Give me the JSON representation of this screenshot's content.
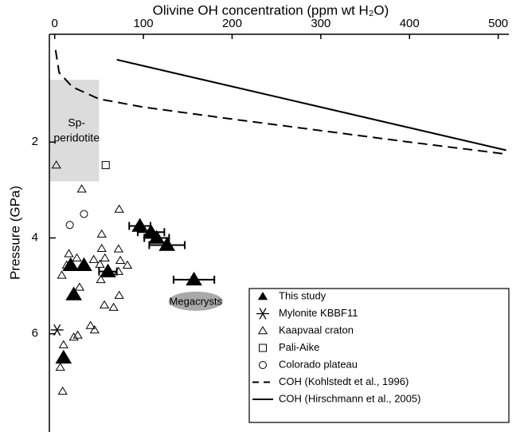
{
  "chart_data": {
    "type": "scatter",
    "x_label": "Olivine OH concentration (ppm wt H₂O)",
    "y_label": "Pressure (GPa)",
    "xlim": [
      -6,
      512
    ],
    "xticks": [
      0,
      100,
      200,
      300,
      400,
      500
    ],
    "ylim": [
      8.05,
      -0.25
    ],
    "yticks": [
      2,
      4,
      6
    ],
    "legend": "lower right",
    "region": {
      "label": [
        "Sp-",
        "peridotite"
      ],
      "x": [
        -6,
        50
      ],
      "y": [
        0.7,
        2.82
      ],
      "color": "#dcdcdc"
    },
    "annotation": {
      "text": "Megacrysts",
      "x": 159,
      "y": 5.32,
      "color": "#a9a9a9"
    },
    "series": [
      {
        "name": "This study",
        "marker": "triangle-filled",
        "color": "#000000",
        "x": [
          96,
          108.6,
          115,
          126.6,
          157,
          18,
          33,
          60,
          21.5,
          10
        ],
        "values": [
          3.75,
          3.88,
          4.0,
          4.15,
          4.87,
          4.57,
          4.57,
          4.7,
          5.18,
          6.5
        ],
        "xerr": [
          12,
          15,
          14,
          20,
          23,
          null,
          null,
          10,
          null,
          null
        ]
      },
      {
        "name": "Mylonite KBBF11",
        "marker": "asterisk",
        "color": "#000000",
        "x": [
          2.7
        ],
        "values": [
          5.92
        ]
      },
      {
        "name": "Kaapvaal craton",
        "marker": "triangle-open",
        "color": "#000000",
        "x": [
          1.8,
          30.5,
          72.7,
          53,
          16,
          25,
          53,
          44,
          72,
          8,
          13.5,
          51,
          56.6,
          74,
          82,
          52,
          72,
          28,
          56,
          66.4,
          72.7,
          40.4,
          45,
          21.5,
          26,
          10,
          6.3,
          9
        ],
        "values": [
          2.48,
          2.98,
          3.4,
          3.92,
          4.33,
          4.42,
          4.22,
          4.45,
          4.23,
          4.78,
          4.57,
          4.55,
          4.42,
          4.47,
          4.57,
          4.87,
          4.7,
          5.03,
          5.4,
          5.45,
          5.2,
          5.83,
          5.92,
          6.07,
          6.03,
          6.23,
          6.7,
          7.2
        ]
      },
      {
        "name": "Pali-Aike",
        "marker": "square-open",
        "color": "#000000",
        "x": [
          57.5
        ],
        "values": [
          2.48
        ]
      },
      {
        "name": "Colorado plateau",
        "marker": "circle-open",
        "color": "#000000",
        "x": [
          17,
          33
        ],
        "values": [
          3.73,
          3.5
        ]
      },
      {
        "name": "COH (Kohlstedt et al., 1996)",
        "marker": "dashed",
        "color": "#000000",
        "x": [
          1,
          5,
          20,
          50,
          100,
          200,
          300,
          400,
          509
        ],
        "values": [
          0.08,
          0.55,
          0.85,
          1.1,
          1.27,
          1.52,
          1.76,
          2.0,
          2.25
        ]
      },
      {
        "name": "COH (Hirschmann et al., 2005)",
        "marker": "solid",
        "color": "#000000",
        "x": [
          70,
          509
        ],
        "values": [
          0.28,
          2.17
        ]
      }
    ]
  }
}
